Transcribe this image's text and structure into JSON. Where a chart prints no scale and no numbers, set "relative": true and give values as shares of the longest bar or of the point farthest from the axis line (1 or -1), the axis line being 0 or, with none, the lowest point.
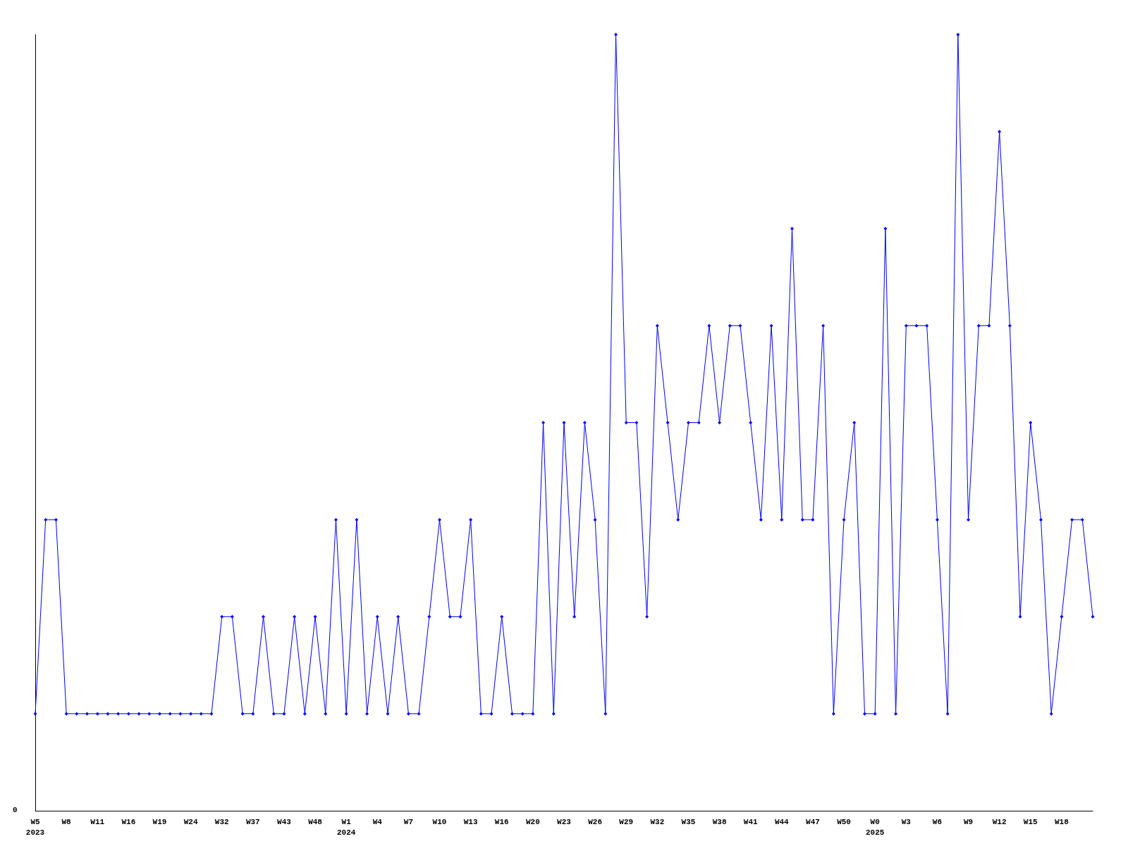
{
  "chart_data": {
    "type": "line",
    "relative": true,
    "color": "#0000ff",
    "marker": "diamond",
    "grid": false,
    "annotations": [
      "0"
    ],
    "categories": [
      "W5\n2023",
      null,
      null,
      "W8",
      null,
      null,
      "W11",
      null,
      null,
      "W16",
      null,
      null,
      "W19",
      null,
      null,
      "W24",
      null,
      null,
      "W32",
      null,
      null,
      "W37",
      null,
      null,
      "W43",
      null,
      null,
      "W48",
      null,
      null,
      "W1\n2024",
      null,
      null,
      "W4",
      null,
      null,
      "W7",
      null,
      null,
      "W10",
      null,
      null,
      "W13",
      null,
      null,
      "W16",
      null,
      null,
      "W20",
      null,
      null,
      "W23",
      null,
      null,
      "W26",
      null,
      null,
      "W29",
      null,
      null,
      "W32",
      null,
      null,
      "W35",
      null,
      null,
      "W38",
      null,
      null,
      "W41",
      null,
      null,
      "W44",
      null,
      null,
      "W47",
      null,
      null,
      "W50",
      null,
      null,
      "W0\n2025",
      null,
      null,
      "W3",
      null,
      null,
      "W6",
      null,
      null,
      "W9",
      null,
      null,
      "W12",
      null,
      null,
      "W15",
      null,
      null,
      "W18",
      null,
      null,
      null
    ],
    "values": [
      0.125,
      0.375,
      0.375,
      0.125,
      0.125,
      0.125,
      0.125,
      0.125,
      0.125,
      0.125,
      0.125,
      0.125,
      0.125,
      0.125,
      0.125,
      0.125,
      0.125,
      0.125,
      0.25,
      0.25,
      0.125,
      0.125,
      0.25,
      0.125,
      0.125,
      0.25,
      0.125,
      0.25,
      0.125,
      0.375,
      0.125,
      0.375,
      0.125,
      0.25,
      0.125,
      0.25,
      0.125,
      0.125,
      0.25,
      0.375,
      0.25,
      0.25,
      0.375,
      0.125,
      0.125,
      0.25,
      0.125,
      0.125,
      0.125,
      0.5,
      0.125,
      0.5,
      0.25,
      0.5,
      0.375,
      0.125,
      1,
      0.5,
      0.5,
      0.25,
      0.625,
      0.5,
      0.375,
      0.5,
      0.5,
      0.625,
      0.5,
      0.625,
      0.625,
      0.5,
      0.375,
      0.625,
      0.375,
      0.75,
      0.375,
      0.375,
      0.625,
      0.125,
      0.375,
      0.5,
      0.125,
      0.125,
      0.75,
      0.125,
      0.625,
      0.625,
      0.625,
      0.375,
      0.125,
      1,
      0.375,
      0.625,
      0.625,
      0.875,
      0.625,
      0.25,
      0.5,
      0.375,
      0.125,
      0.25,
      0.375,
      0.375,
      0.25
    ]
  }
}
